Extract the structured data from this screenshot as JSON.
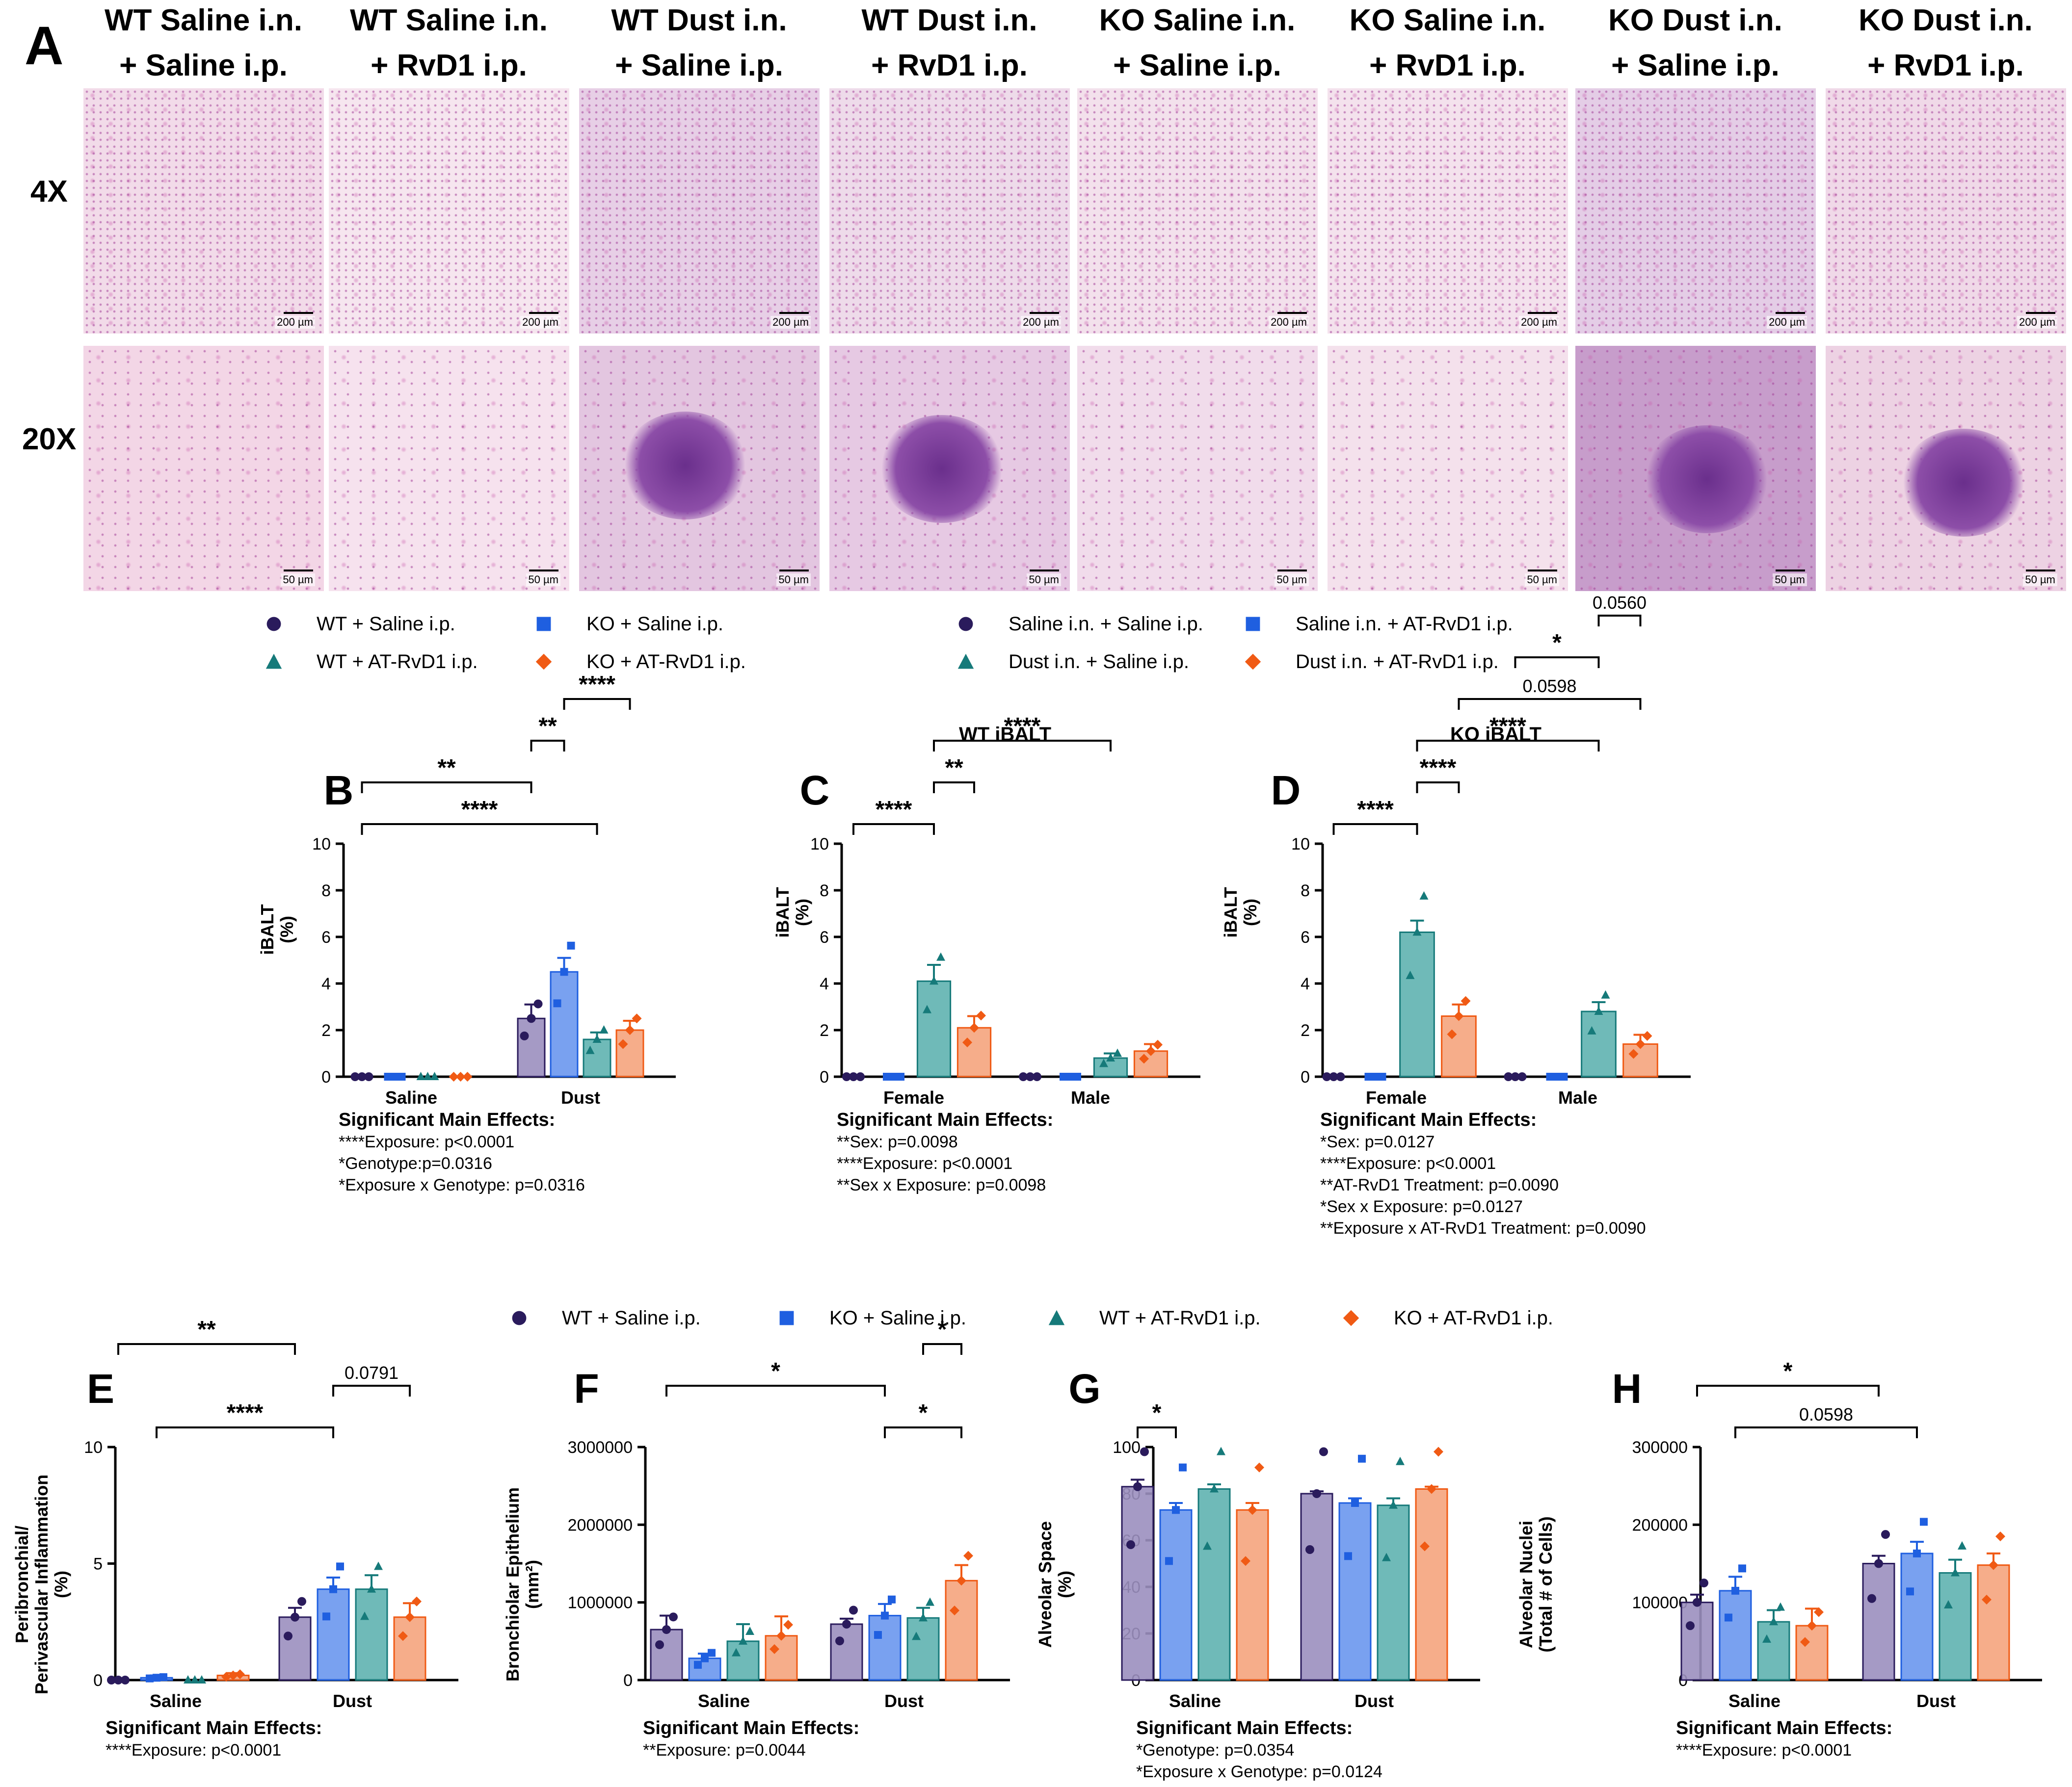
{
  "panel_a": {
    "label": "A",
    "row_labels": [
      "4X",
      "20X"
    ],
    "columns": [
      "WT Saline i.n.\n+ Saline i.p.",
      "WT Saline i.n.\n+ RvD1 i.p.",
      "WT Dust i.n.\n+ Saline i.p.",
      "WT Dust i.n.\n+ RvD1 i.p.",
      "KO Saline i.n.\n+ Saline i.p.",
      "KO Saline i.n.\n+ RvD1 i.p.",
      "KO Dust i.n.\n+ Saline i.p.",
      "KO Dust i.n.\n+ RvD1 i.p."
    ],
    "scale_4x": "200 µm",
    "scale_20x": "50 µm"
  },
  "legend_left": [
    {
      "label": "WT + Saline i.p.",
      "marker": "circle",
      "color": "#2a1b5c"
    },
    {
      "label": "KO + Saline i.p.",
      "marker": "square",
      "color": "#1f5fe0"
    },
    {
      "label": "WT + AT-RvD1 i.p.",
      "marker": "triangle",
      "color": "#167a7a"
    },
    {
      "label": "KO + AT-RvD1 i.p.",
      "marker": "diamond",
      "color": "#f05a14"
    }
  ],
  "legend_right": [
    {
      "label": "Saline i.n. + Saline i.p.",
      "marker": "circle",
      "color": "#2a1b5c"
    },
    {
      "label": "Saline i.n. + AT-RvD1 i.p.",
      "marker": "square",
      "color": "#1f5fe0"
    },
    {
      "label": "Dust i.n. + Saline i.p.",
      "marker": "triangle",
      "color": "#167a7a"
    },
    {
      "label": "Dust i.n. + AT-RvD1 i.p.",
      "marker": "diamond",
      "color": "#f05a14"
    }
  ],
  "legend_bottom": [
    {
      "label": "WT + Saline i.p.",
      "marker": "circle",
      "color": "#2a1b5c"
    },
    {
      "label": "KO + Saline i.p.",
      "marker": "square",
      "color": "#1f5fe0"
    },
    {
      "label": "WT + AT-RvD1 i.p.",
      "marker": "triangle",
      "color": "#167a7a"
    },
    {
      "label": "KO + AT-RvD1 i.p.",
      "marker": "diamond",
      "color": "#f05a14"
    }
  ],
  "chart_data": [
    {
      "panel": "B",
      "type": "bar",
      "title": "",
      "ylabel": "iBALT\n(%)",
      "ylim": [
        0,
        10
      ],
      "yticks": [
        "0",
        "2",
        "4",
        "6",
        "8",
        "10"
      ],
      "categories": [
        "Saline",
        "Dust"
      ],
      "series": [
        {
          "values": [
            0.0,
            2.5
          ],
          "error": [
            0.0,
            0.6
          ]
        },
        {
          "values": [
            0.0,
            4.5
          ],
          "error": [
            0.0,
            0.6
          ]
        },
        {
          "values": [
            0.0,
            1.6
          ],
          "error": [
            0.0,
            0.3
          ]
        },
        {
          "values": [
            0.0,
            2.0
          ],
          "error": [
            0.0,
            0.4
          ]
        }
      ],
      "significance": [
        {
          "label": "****",
          "from": [
            0,
            0
          ],
          "to": [
            1,
            2
          ]
        },
        {
          "label": "**",
          "from": [
            0,
            0
          ],
          "to": [
            1,
            0
          ]
        },
        {
          "label": "**",
          "from": [
            1,
            0
          ],
          "to": [
            1,
            1
          ]
        },
        {
          "label": "****",
          "from": [
            1,
            1
          ],
          "to": [
            1,
            3
          ]
        }
      ],
      "notes": [
        "Significant Main Effects:",
        "****Exposure: p<0.0001",
        "*Genotype:p=0.0316",
        "*Exposure x Genotype: p=0.0316"
      ]
    },
    {
      "panel": "C",
      "type": "bar",
      "title": "WT iBALT",
      "ylabel": "iBALT\n(%)",
      "ylim": [
        0,
        10
      ],
      "yticks": [
        "0",
        "2",
        "4",
        "6",
        "8",
        "10"
      ],
      "categories": [
        "Female",
        "Male"
      ],
      "series": [
        {
          "values": [
            0.0,
            0.0
          ],
          "error": [
            0.0,
            0.0
          ]
        },
        {
          "values": [
            0.0,
            0.0
          ],
          "error": [
            0.0,
            0.0
          ]
        },
        {
          "values": [
            4.1,
            0.8
          ],
          "error": [
            0.7,
            0.2
          ]
        },
        {
          "values": [
            2.1,
            1.1
          ],
          "error": [
            0.5,
            0.3
          ]
        }
      ],
      "significance": [
        {
          "label": "****",
          "from": [
            0,
            0
          ],
          "to": [
            0,
            2
          ]
        },
        {
          "label": "**",
          "from": [
            0,
            2
          ],
          "to": [
            0,
            3
          ]
        },
        {
          "label": "****",
          "from": [
            0,
            2
          ],
          "to": [
            1,
            2
          ]
        }
      ],
      "notes": [
        "Significant Main Effects:",
        "**Sex: p=0.0098",
        "****Exposure: p<0.0001",
        "**Sex x Exposure: p=0.0098"
      ]
    },
    {
      "panel": "D",
      "type": "bar",
      "title": "KO iBALT",
      "ylabel": "iBALT\n(%)",
      "ylim": [
        0,
        10
      ],
      "yticks": [
        "0",
        "2",
        "4",
        "6",
        "8",
        "10"
      ],
      "categories": [
        "Female",
        "Male"
      ],
      "series": [
        {
          "values": [
            0.0,
            0.0
          ],
          "error": [
            0.0,
            0.0
          ]
        },
        {
          "values": [
            0.0,
            0.0
          ],
          "error": [
            0.0,
            0.0
          ]
        },
        {
          "values": [
            6.2,
            2.8
          ],
          "error": [
            0.5,
            0.4
          ]
        },
        {
          "values": [
            2.6,
            1.4
          ],
          "error": [
            0.5,
            0.4
          ]
        }
      ],
      "significance": [
        {
          "label": "****",
          "from": [
            0,
            0
          ],
          "to": [
            0,
            2
          ]
        },
        {
          "label": "****",
          "from": [
            0,
            2
          ],
          "to": [
            0,
            3
          ]
        },
        {
          "label": "****",
          "from": [
            0,
            2
          ],
          "to": [
            1,
            2
          ]
        },
        {
          "label": "0.0598",
          "from": [
            0,
            3
          ],
          "to": [
            1,
            3
          ]
        },
        {
          "label": "*",
          "from": [
            1,
            0
          ],
          "to": [
            1,
            2
          ]
        },
        {
          "label": "0.0560",
          "from": [
            1,
            2
          ],
          "to": [
            1,
            3
          ]
        }
      ],
      "notes": [
        "Significant Main Effects:",
        "*Sex: p=0.0127",
        "****Exposure: p<0.0001",
        "**AT-RvD1 Treatment: p=0.0090",
        "*Sex x Exposure: p=0.0127",
        "**Exposure x AT-RvD1 Treatment: p=0.0090"
      ]
    },
    {
      "panel": "E",
      "type": "bar",
      "title": "",
      "ylabel": "Peribronchial/\nPerivascular Inflammation\n(%)",
      "ylim": [
        0,
        10
      ],
      "yticks": [
        "0",
        "5",
        "10"
      ],
      "categories": [
        "Saline",
        "Dust"
      ],
      "series": [
        {
          "values": [
            0.0,
            2.7
          ],
          "error": [
            0.0,
            0.4
          ]
        },
        {
          "values": [
            0.1,
            3.9
          ],
          "error": [
            0.1,
            0.5
          ]
        },
        {
          "values": [
            0.0,
            3.9
          ],
          "error": [
            0.0,
            0.6
          ]
        },
        {
          "values": [
            0.2,
            2.7
          ],
          "error": [
            0.1,
            0.6
          ]
        }
      ],
      "significance": [
        {
          "label": "****",
          "from": [
            0,
            1
          ],
          "to": [
            1,
            1
          ]
        },
        {
          "label": "0.0791",
          "from": [
            1,
            1
          ],
          "to": [
            1,
            3
          ]
        },
        {
          "label": "**",
          "from": [
            0,
            0
          ],
          "to": [
            1,
            0
          ]
        }
      ],
      "notes": [
        "Significant Main Effects:",
        "****Exposure: p<0.0001"
      ]
    },
    {
      "panel": "F",
      "type": "bar",
      "title": "",
      "ylabel": "Bronchiolar Epithelium\n(mm²)",
      "ylim": [
        0,
        3000000
      ],
      "yticks": [
        "0",
        "1000000",
        "2000000",
        "3000000"
      ],
      "categories": [
        "Saline",
        "Dust"
      ],
      "series": [
        {
          "values": [
            650000,
            720000
          ],
          "error": [
            180000,
            70000
          ]
        },
        {
          "values": [
            280000,
            830000
          ],
          "error": [
            60000,
            150000
          ]
        },
        {
          "values": [
            500000,
            800000
          ],
          "error": [
            220000,
            130000
          ]
        },
        {
          "values": [
            570000,
            1280000
          ],
          "error": [
            250000,
            200000
          ]
        }
      ],
      "significance": [
        {
          "label": "*",
          "from": [
            1,
            1
          ],
          "to": [
            1,
            3
          ]
        },
        {
          "label": "*",
          "from": [
            0,
            0
          ],
          "to": [
            1,
            1
          ]
        },
        {
          "label": "*",
          "from": [
            1,
            2
          ],
          "to": [
            1,
            3
          ]
        }
      ],
      "notes": [
        "Significant Main Effects:",
        "**Exposure: p=0.0044"
      ]
    },
    {
      "panel": "G",
      "type": "bar",
      "title": "",
      "ylabel": "Alveolar Space\n(%)",
      "ylim": [
        0,
        100
      ],
      "yticks": [
        "0",
        "20",
        "40",
        "60",
        "80",
        "100"
      ],
      "categories": [
        "Saline",
        "Dust"
      ],
      "series": [
        {
          "values": [
            83,
            80
          ],
          "error": [
            3,
            1
          ]
        },
        {
          "values": [
            73,
            76
          ],
          "error": [
            3,
            2
          ]
        },
        {
          "values": [
            82,
            75
          ],
          "error": [
            2,
            3
          ]
        },
        {
          "values": [
            73,
            82
          ],
          "error": [
            3,
            1
          ]
        }
      ],
      "significance": [
        {
          "label": "*",
          "from": [
            0,
            0
          ],
          "to": [
            0,
            1
          ]
        }
      ],
      "notes": [
        "Significant Main Effects:",
        "*Genotype: p=0.0354",
        "*Exposure x Genotype: p=0.0124"
      ]
    },
    {
      "panel": "H",
      "type": "bar",
      "title": "",
      "ylabel": "Alveolar Nuclei\n(Total # of Cells)",
      "ylim": [
        0,
        300000
      ],
      "yticks": [
        "0",
        "100000",
        "200000",
        "300000"
      ],
      "categories": [
        "Saline",
        "Dust"
      ],
      "series": [
        {
          "values": [
            100000,
            150000
          ],
          "error": [
            10000,
            10000
          ]
        },
        {
          "values": [
            115000,
            163000
          ],
          "error": [
            18000,
            15000
          ]
        },
        {
          "values": [
            75000,
            138000
          ],
          "error": [
            15000,
            17000
          ]
        },
        {
          "values": [
            70000,
            148000
          ],
          "error": [
            22000,
            15000
          ]
        }
      ],
      "significance": [
        {
          "label": "0.0598",
          "from": [
            0,
            1
          ],
          "to": [
            1,
            1
          ]
        },
        {
          "label": "*",
          "from": [
            0,
            0
          ],
          "to": [
            1,
            0
          ]
        }
      ],
      "notes": [
        "Significant Main Effects:",
        "****Exposure: p<0.0001"
      ]
    }
  ]
}
